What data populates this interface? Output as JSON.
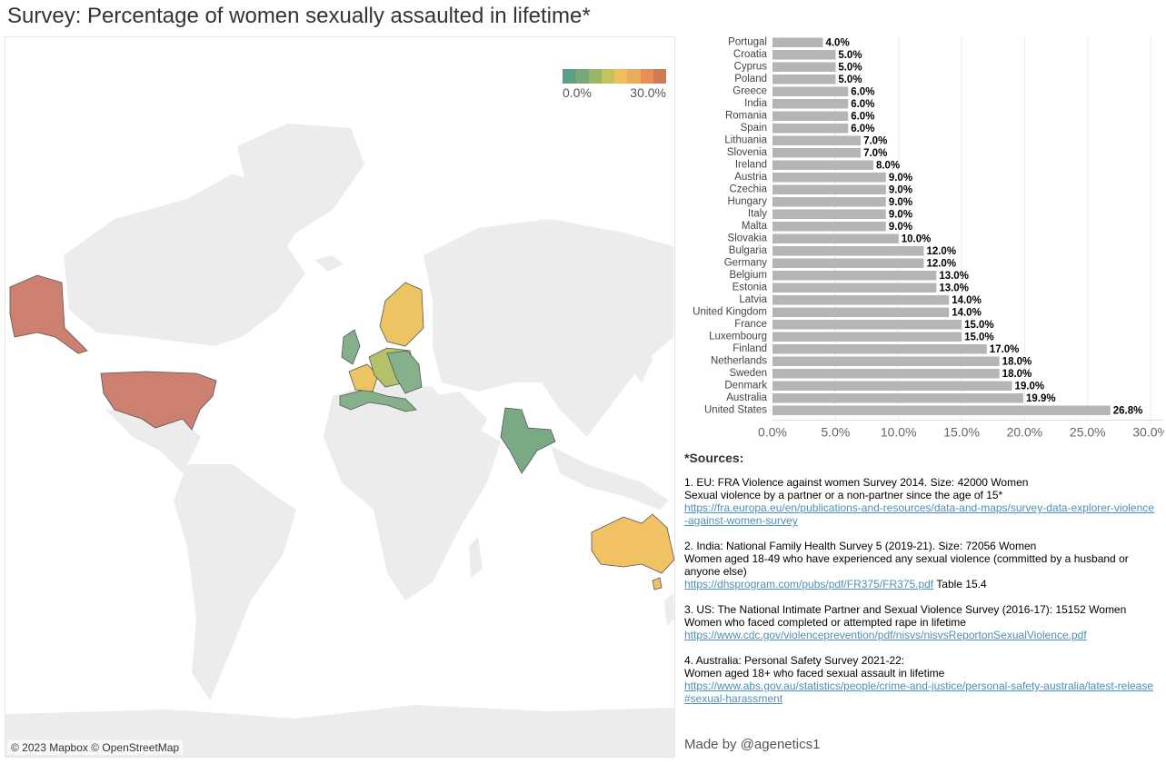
{
  "title": "Survey: Percentage of women sexually assaulted in lifetime*",
  "map": {
    "credit": "© 2023 Mapbox © OpenStreetMap",
    "legend": {
      "min_label": "0.0%",
      "max_label": "30.0%",
      "colors": [
        "#5b9e85",
        "#79a77a",
        "#9ab568",
        "#c4c25c",
        "#eec05b",
        "#ebaa5c",
        "#e88e57",
        "#cd7a57"
      ]
    },
    "land_color": "#ececec",
    "highlight_colors": {
      "us": "#cd8070",
      "australia": "#f0c264",
      "india": "#7aaa84",
      "europe_low": "#86b08a",
      "europe_mid": "#b4c06a",
      "europe_high": "#ecc464"
    }
  },
  "chart_data": {
    "type": "bar",
    "orientation": "horizontal",
    "categories": [
      "Portugal",
      "Croatia",
      "Cyprus",
      "Poland",
      "Greece",
      "India",
      "Romania",
      "Spain",
      "Lithuania",
      "Slovenia",
      "Ireland",
      "Austria",
      "Czechia",
      "Hungary",
      "Italy",
      "Malta",
      "Slovakia",
      "Bulgaria",
      "Germany",
      "Belgium",
      "Estonia",
      "Latvia",
      "United Kingdom",
      "France",
      "Luxembourg",
      "Finland",
      "Netherlands",
      "Sweden",
      "Denmark",
      "Australia",
      "United States"
    ],
    "values": [
      4.0,
      5.0,
      5.0,
      5.0,
      6.0,
      6.0,
      6.0,
      6.0,
      7.0,
      7.0,
      8.0,
      9.0,
      9.0,
      9.0,
      9.0,
      9.0,
      10.0,
      12.0,
      12.0,
      13.0,
      13.0,
      14.0,
      14.0,
      15.0,
      15.0,
      17.0,
      18.0,
      18.0,
      19.0,
      19.9,
      26.8
    ],
    "value_labels": [
      "4.0%",
      "5.0%",
      "5.0%",
      "5.0%",
      "6.0%",
      "6.0%",
      "6.0%",
      "6.0%",
      "7.0%",
      "7.0%",
      "8.0%",
      "9.0%",
      "9.0%",
      "9.0%",
      "9.0%",
      "9.0%",
      "10.0%",
      "12.0%",
      "12.0%",
      "13.0%",
      "13.0%",
      "14.0%",
      "14.0%",
      "15.0%",
      "15.0%",
      "17.0%",
      "18.0%",
      "18.0%",
      "19.0%",
      "19.9%",
      "26.8%"
    ],
    "xlim": [
      0,
      31
    ],
    "xticks": [
      0,
      5,
      10,
      15,
      20,
      25,
      30
    ],
    "xtick_labels": [
      "0.0%",
      "5.0%",
      "10.0%",
      "15.0%",
      "20.0%",
      "25.0%",
      "30.0%"
    ],
    "bar_color": "#b5b5b5"
  },
  "sources": {
    "heading": "*Sources:",
    "items": [
      {
        "title": "1. EU: FRA Violence against women Survey 2014. Size: 42000 Women",
        "desc": "Sexual violence by a partner or a non-partner since the age of 15*",
        "link": "https://fra.europa.eu/en/publications-and-resources/data-and-maps/survey-data-explorer-violence-against-women-survey",
        "suffix": ""
      },
      {
        "title": "2. India: National Family Health Survey 5 (2019-21). Size: 72056 Women",
        "desc": "Women aged 18-49 who have experienced any sexual violence (committed by a husband or anyone else)",
        "link": "https://dhsprogram.com/pubs/pdf/FR375/FR375.pdf",
        "suffix": " Table 15.4"
      },
      {
        "title": "3. US: The National Intimate Partner and Sexual Violence Survey (2016-17): 15152 Women",
        "desc": "Women who faced completed or attempted rape in lifetime",
        "link": "https://www.cdc.gov/violenceprevention/pdf/nisvs/nisvsReportonSexualViolence.pdf",
        "suffix": ""
      },
      {
        "title": "4. Australia: Personal Safety Survey 2021-22:",
        "desc": "Women aged 18+ who faced sexual assault in lifetime",
        "link": "https://www.abs.gov.au/statistics/people/crime-and-justice/personal-safety-australia/latest-release#sexual-harassment",
        "suffix": ""
      }
    ]
  },
  "footer": {
    "made_by": "Made by @agenetics1"
  }
}
